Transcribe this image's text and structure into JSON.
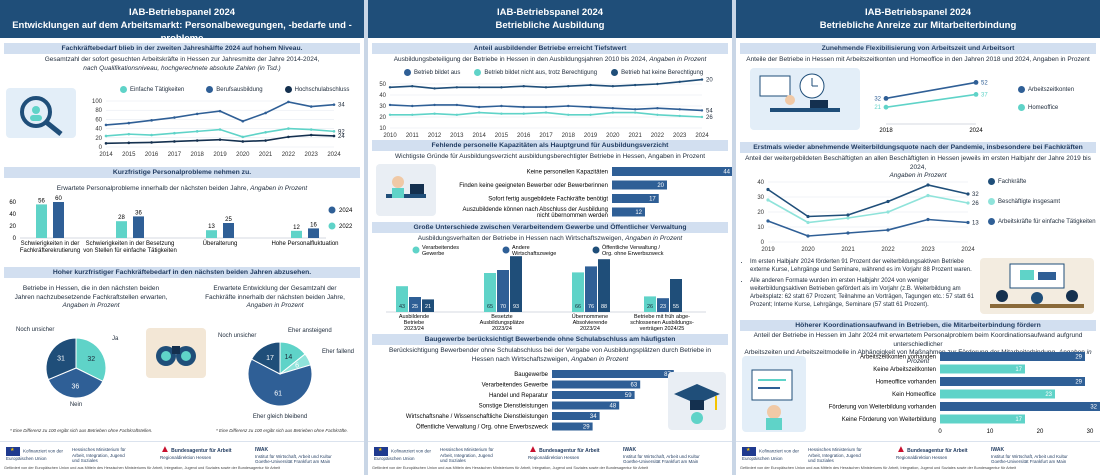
{
  "panels": [
    {
      "title_l1": "IAB-Betriebspanel 2024",
      "title_l2": "Entwicklungen auf dem Arbeitsmarkt: Personalbewegungen, -bedarfe und -probleme"
    },
    {
      "title_l1": "IAB-Betriebspanel 2024",
      "title_l2": "Betriebliche Ausbildung"
    },
    {
      "title_l1": "IAB-Betriebspanel 2024",
      "title_l2": "Betriebliche Anreize zur Mitarbeiterbindung"
    }
  ],
  "p1": {
    "sec1": "Fachkräftebedarf blieb in der zweiten Jahreshälfte 2024 auf hohem Niveau.",
    "sub1_a": "Gesamtzahl der sofort gesuchten Arbeitskräfte in Hessen zur Jahresmitte der Jahre 2014-2024,",
    "sub1_b": "nach Qualifikationsniveau, hochgerechnete absolute Zahlen (in Tsd.)",
    "sec2": "Kurzfristige Personalprobleme nehmen zu.",
    "sub2_a": "Erwartete Personalprobleme innerhalb der nächsten beiden Jahre,",
    "sub2_b": "Angaben in Prozent",
    "sec3": "Hoher kurzfristiger Fachkräftebedarf in den nächsten beiden Jahren abzusehen.",
    "pie1_txt_a": "Betriebe in Hessen, die in den nächsten beiden",
    "pie1_txt_b": "Jahren nachzubesetzende Fachkraftstellen erwarten,",
    "pie1_txt_c": "Angaben in Prozent",
    "pie2_txt_a": "Erwartete Entwicklung der Gesamtzahl der",
    "pie2_txt_b": "Fachkräfte innerhalb der nächsten beiden Jahre,",
    "pie2_txt_c": "Angaben in Prozent",
    "note1": "* Eine Differenz zu 100 ergibt sich aus Betrieben ohne Fachkraftstellen.",
    "note2": "* Eine Differenz zu 100 ergibt sich aus Betrieben ohne Fachkräfte."
  },
  "p2": {
    "sec1": "Anteil ausbildender Betriebe erreicht Tiefstwert",
    "sub1_a": "Ausbildungsbeteiligung der Betriebe in Hessen in den Ausbildungsjahren 2010 bis 2024,",
    "sub1_b": "Angaben in Prozent",
    "sec2": "Fehlende personelle Kapazitäten als Hauptgrund für Ausbildungsverzicht",
    "sub2": "Wichtigste Gründe für Ausbildungsverzicht ausbildungsberechtigter Betriebe in Hessen, Angaben in Prozent",
    "sec3": "Große Unterschiede zwischen Verarbeitendem Gewerbe und Öffentlicher Verwaltung",
    "sub3_a": "Ausbildungsverhalten der Betriebe in Hessen nach Wirtschaftszweigen,",
    "sub3_b": "Angaben in Prozent",
    "sec4": "Baugewerbe berücksichtigt Bewerbende ohne Schulabschluss am häufigsten",
    "sub4_a": "Berücksichtigung Bewerbender ohne Schulabschluss bei der Vergabe von Ausbildungsplätzen durch Betriebe in",
    "sub4_b": "Hessen nach Wirtschaftszweigen,",
    "sub4_c": "Angaben in Prozent"
  },
  "p3": {
    "sec1": "Zunehmende Flexibilisierung von Arbeitszeit und Arbeitsort",
    "sub1": "Anteile der Betriebe in Hessen mit Arbeitszeitkonten und Homeoffice in den Jahren 2018 und 2024, Angaben in Prozent",
    "sec2": "Erstmals wieder abnehmende Weiterbildungsquote nach der Pandemie, insbesondere bei Fachkräften",
    "sub2_a": "Anteil der weitergebildeten Beschäftigten an allen Beschäftigten in Hessen jeweils im ersten Halbjahr der Jahre 2019 bis 2024,",
    "sub2_b": "Angaben in Prozent",
    "bullet1": "Im ersten Halbjahr 2024 förderten 91 Prozent der weiterbildungsaktiven Betriebe externe Kurse, Lehrgänge und Seminare, während es im Vorjahr 88 Prozent waren.",
    "bullet2": "Alle anderen Formate wurden im ersten Halbjahr 2024 von weniger weiterbildungsaktiven Betrieben gefördert als im Vorjahr (z.B. Weiterbildung am Arbeitsplatz: 62 statt 67 Prozent; Teilnahme an Vorträgen, Tagungen etc.: 57 statt 61 Prozent; Interne Kurse, Lehrgänge, Seminare (57 statt 61 Prozent).",
    "sec3": "Höherer Koordinationsaufwand in Betrieben, die Mitarbeiterbindung fördern",
    "sub3_a": "Anteil der Betriebe in Hessen im Jahr 2024 mit erwartetem Personalproblem beim Koordinationsaufwand aufgrund unterschiedlicher",
    "sub3_b": "Arbeitszeiten und Arbeitszeitmodelle in Abhängigkeit von Maßnahmen zur Förderung der Mitarbeiterbindung,",
    "sub3_c": "Angaben in Prozent"
  },
  "footer": {
    "eu": "Kofinanziert von der Europäischen Union",
    "hessen": "Hessisches Ministerium für Arbeit, Integration, Jugend und Soziales",
    "ba_a": "Bundesagentur für Arbeit",
    "ba_b": "Regionaldirektion Hessen",
    "iwak_a": "IWAK",
    "iwak_b": "Institut für Wirtschaft, Arbeit und Kultur",
    "iwak_c": "Goethe-Universität Frankfurt am Main",
    "fine": "Gefördert von der Europäischen Union und aus Mitteln des Hessischen Ministeriums für Arbeit, Integration, Jugend und Soziales sowie der Bundesagentur für Arbeit"
  },
  "chart_data": [
    {
      "id": "sought",
      "type": "line",
      "x": [
        2014,
        2015,
        2016,
        2017,
        2018,
        2019,
        2020,
        2021,
        2022,
        2023,
        2024
      ],
      "series": [
        {
          "name": "Einfache Tätigkeiten",
          "color": "#5fd3c8",
          "values": [
            24,
            28,
            26,
            30,
            34,
            38,
            22,
            32,
            40,
            38,
            34
          ]
        },
        {
          "name": "Berufsausbildung",
          "color": "#2f5f96",
          "values": [
            48,
            52,
            58,
            64,
            72,
            78,
            56,
            74,
            98,
            88,
            92
          ]
        },
        {
          "name": "Hochschulabschluss",
          "color": "#14304f",
          "values": [
            8,
            9,
            10,
            12,
            14,
            16,
            12,
            14,
            22,
            26,
            24
          ]
        }
      ],
      "ylim": [
        0,
        100
      ],
      "yticks": [
        0,
        20,
        40,
        60,
        80,
        100
      ],
      "end_labels": [
        "92",
        "34",
        "24"
      ]
    },
    {
      "id": "problems",
      "type": "bar",
      "categories": [
        "Schwierigkeiten in der Fachkräfterekrutierung",
        "Schwierigkeiten in der Besetzung von Stellen für einfache Tätigkeiten",
        "Überalterung",
        "Hohe Personalfluktuation"
      ],
      "categories_l1": [
        "Schwierigkeiten in der",
        "Schwierigkeiten in der Besetzung",
        "Überalterung",
        "Hohe Personalfluktuation"
      ],
      "categories_l2": [
        "Fachkräfterekrutierung",
        "von Stellen für einfache Tätigkeiten",
        "",
        ""
      ],
      "series": [
        {
          "name": "2024",
          "color": "#2f5f96",
          "values": [
            60,
            36,
            25,
            16
          ]
        },
        {
          "name": "2022",
          "color": "#5fd3c8",
          "values": [
            56,
            28,
            13,
            12
          ]
        }
      ],
      "ylim": [
        0,
        60
      ],
      "yticks": [
        0,
        20,
        40,
        60
      ]
    },
    {
      "id": "pie_fk",
      "type": "pie",
      "labels": [
        "Ja",
        "Nein",
        "Noch unsicher"
      ],
      "values": [
        32,
        36,
        31
      ],
      "colors": [
        "#5fd3c8",
        "#2f5f96",
        "#1f4e79"
      ]
    },
    {
      "id": "pie_dev",
      "type": "pie",
      "labels": [
        "Eher ansteigend",
        "Eher fallend",
        "Eher gleich bleibend",
        "Noch unsicher"
      ],
      "values": [
        14,
        6,
        61,
        17
      ],
      "colors": [
        "#5fd3c8",
        "#8fe3da",
        "#2f5f96",
        "#1f4e79"
      ]
    },
    {
      "id": "ausbildung",
      "type": "line",
      "x": [
        2010,
        2011,
        2012,
        2013,
        2014,
        2015,
        2016,
        2017,
        2018,
        2019,
        2020,
        2021,
        2022,
        2023,
        2024
      ],
      "series": [
        {
          "name": "Betrieb bildet aus",
          "color": "#2f5f96",
          "values": [
            31,
            30,
            31,
            31,
            29,
            30,
            29,
            29,
            30,
            29,
            28,
            27,
            28,
            27,
            26
          ]
        },
        {
          "name": "Betrieb bildet nicht aus, trotz Berechtigung",
          "color": "#5fd3c8",
          "values": [
            22,
            22,
            23,
            22,
            24,
            23,
            23,
            24,
            22,
            22,
            24,
            24,
            22,
            21,
            20
          ]
        },
        {
          "name": "Betrieb hat keine Berechtigung",
          "color": "#1f4e79",
          "values": [
            47,
            48,
            46,
            47,
            47,
            47,
            48,
            47,
            48,
            49,
            48,
            49,
            50,
            52,
            54
          ]
        }
      ],
      "ylim": [
        10,
        50
      ],
      "yticks": [
        10,
        20,
        30,
        40,
        50
      ],
      "end_labels": [
        "54",
        "26",
        "20"
      ]
    },
    {
      "id": "reasons",
      "type": "bar",
      "orientation": "horizontal",
      "categories": [
        "Keine personellen Kapazitäten",
        "Finden keine geeigneten Bewerber oder Bewerberinnen",
        "Sofort fertig ausgebildete Fachkräfte benötigt",
        "Auszubildende können nach Abschluss der Ausbildung nicht übernommen werden"
      ],
      "categories_l1": [
        "Keine personellen Kapazitäten",
        "Finden keine geeigneten Bewerber oder Bewerberinnen",
        "Sofort fertig ausgebildete Fachkräfte benötigt",
        "Auszubildende können nach Abschluss der Ausbildung"
      ],
      "categories_l2": [
        "",
        "",
        "",
        "nicht übernommen werden"
      ],
      "values": [
        44,
        20,
        17,
        12
      ],
      "color": "#2f5f96"
    },
    {
      "id": "branches",
      "type": "bar",
      "categories": [
        "Ausbildende Betriebe 2023/24",
        "Besetzte Ausbildungsplätze 2023/24",
        "Übernommene Absolvierende 2023/24",
        "Betriebe mit früh abgeschlossenen Ausbildungsverträgen 2024/25"
      ],
      "categories_l1": [
        "Ausbildende",
        "Besetzte",
        "Übernommene",
        "Betriebe mit früh abge-"
      ],
      "categories_l2": [
        "Betriebe",
        "Ausbildungsplätze",
        "Absolvierende",
        "schlossenen Ausbildungs-"
      ],
      "categories_l3": [
        "2023/24",
        "2023/24",
        "2023/24",
        "verträgen 2024/25"
      ],
      "series": [
        {
          "name": "Verarbeitendes Gewerbe",
          "color": "#5fd3c8",
          "values": [
            43,
            65,
            66,
            26
          ]
        },
        {
          "name": "Andere Wirtschaftszweige",
          "color": "#2f5f96",
          "values": [
            25,
            70,
            76,
            23
          ]
        },
        {
          "name": "Öffentliche Verwaltung / Org. ohne Erwerbszweck",
          "color": "#1f4e79",
          "values": [
            21,
            93,
            88,
            55
          ]
        }
      ],
      "ylim": [
        0,
        100
      ]
    },
    {
      "id": "ohne_abschluss",
      "type": "bar",
      "orientation": "horizontal",
      "categories": [
        "Baugewerbe",
        "Verarbeitendes Gewerbe",
        "Handel und Reparatur",
        "Sonstige Dienstleistungen",
        "Wirtschaftsnahe / Wissenschaftliche Dienstleistungen",
        "Öffentliche Verwaltung / Org. ohne Erwerbszweck"
      ],
      "values": [
        87,
        63,
        59,
        48,
        34,
        29
      ],
      "color": "#2f5f96"
    },
    {
      "id": "flex",
      "type": "line",
      "x": [
        2018,
        2024
      ],
      "series": [
        {
          "name": "Arbeitszeitkonten",
          "color": "#2f5f96",
          "values": [
            32,
            52
          ]
        },
        {
          "name": "Homeoffice",
          "color": "#5fd3c8",
          "values": [
            21,
            37
          ]
        }
      ],
      "labels": {
        "Arbeitszeitkonten": [
          "32",
          "52"
        ],
        "Homeoffice": [
          "21",
          "37"
        ]
      },
      "ylim": [
        0,
        60
      ]
    },
    {
      "id": "weiterbildung",
      "type": "line",
      "x": [
        2019,
        2020,
        2021,
        2022,
        2023,
        2024
      ],
      "series": [
        {
          "name": "Fachkräfte",
          "color": "#1f4e79",
          "values": [
            35,
            17,
            18,
            27,
            38,
            32
          ]
        },
        {
          "name": "Beschäftigte insgesamt",
          "color": "#8fe3da",
          "values": [
            28,
            13,
            16,
            20,
            31,
            26
          ]
        },
        {
          "name": "Arbeitskräfte für einfache Tätigkeiten",
          "color": "#2f5f96",
          "values": [
            14,
            4,
            6,
            8,
            15,
            13
          ]
        }
      ],
      "ylim": [
        0,
        40
      ],
      "yticks": [
        0,
        10,
        20,
        30,
        40
      ],
      "end_labels": [
        "32",
        "26",
        "13"
      ]
    },
    {
      "id": "koordination",
      "type": "bar",
      "orientation": "horizontal",
      "categories": [
        "Arbeitszeitkonten vorhanden",
        "Keine Arbeitszeitkonten",
        "Homeoffice vorhanden",
        "Kein Homeoffice",
        "Förderung von Weiterbildung vorhanden",
        "Keine Förderung von Weiterbildung"
      ],
      "values": [
        29,
        17,
        29,
        23,
        32,
        17
      ],
      "colors": [
        "#2f5f96",
        "#5fd3c8",
        "#2f5f96",
        "#5fd3c8",
        "#2f5f96",
        "#5fd3c8"
      ],
      "xlim": [
        0,
        30
      ],
      "xticks": [
        0,
        10,
        20,
        30
      ]
    }
  ]
}
